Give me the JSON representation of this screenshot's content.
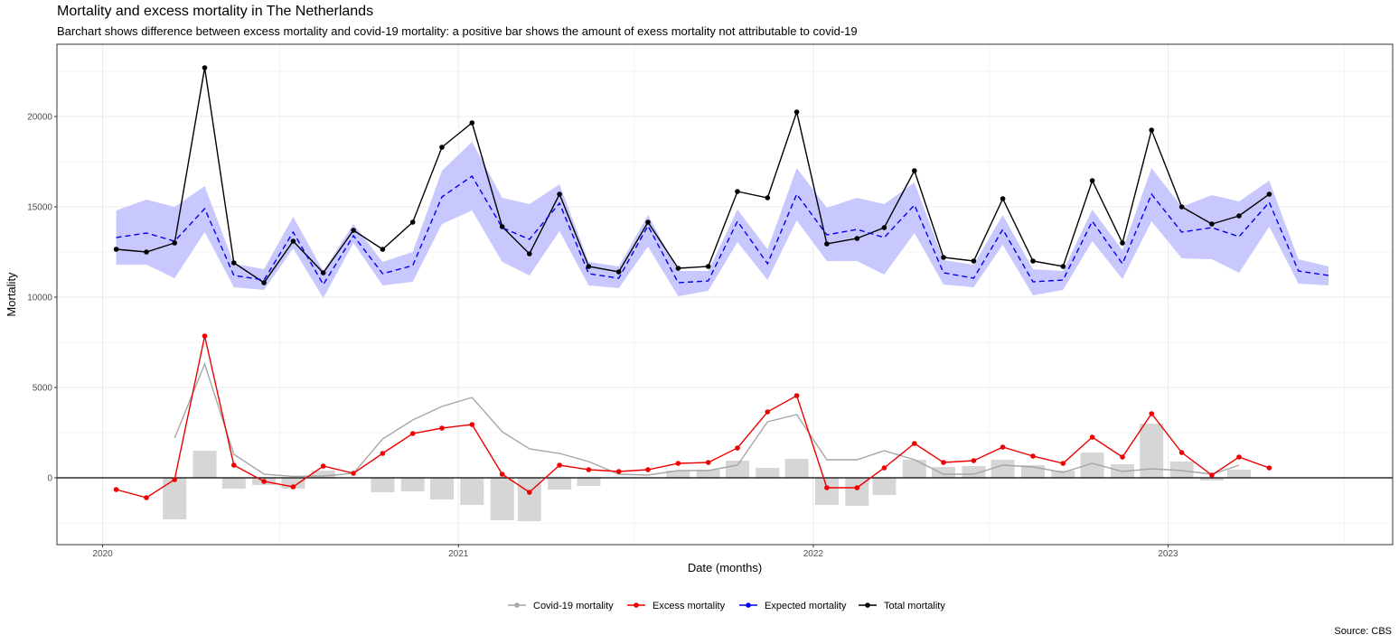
{
  "chart_data": {
    "type": "line",
    "title": "Mortality and excess mortality in The Netherlands",
    "subtitle": "Barchart shows difference between excess mortality and covid-19 mortality: a positive bar shows the amount of exess mortality not attributable to covid-19",
    "xlabel": "Date (months)",
    "ylabel": "Mortality",
    "caption": "Source: CBS",
    "x_ticks": [
      "2020",
      "2021",
      "2022",
      "2023"
    ],
    "y_ticks": [
      0,
      5000,
      10000,
      15000,
      20000
    ],
    "xlim": [
      "2019-11-15",
      "2023-08-20"
    ],
    "ylim": [
      -3700,
      24000
    ],
    "grid": true,
    "legend_position": "bottom",
    "legend": [
      "Covid-19 mortality",
      "Excess mortality",
      "Expected mortality",
      "Total mortality"
    ],
    "colors": {
      "covid": "#a6a6a6",
      "excess": "#ee0000",
      "expected": "#0000ee",
      "total": "#000000",
      "band": "#c8c8ff",
      "bars": "#d6d6d6"
    },
    "months": [
      "2020-01",
      "2020-02",
      "2020-03",
      "2020-04",
      "2020-05",
      "2020-06",
      "2020-07",
      "2020-08",
      "2020-09",
      "2020-10",
      "2020-11",
      "2020-12",
      "2021-01",
      "2021-02",
      "2021-03",
      "2021-04",
      "2021-05",
      "2021-06",
      "2021-07",
      "2021-08",
      "2021-09",
      "2021-10",
      "2021-11",
      "2021-12",
      "2022-01",
      "2022-02",
      "2022-03",
      "2022-04",
      "2022-05",
      "2022-06",
      "2022-07",
      "2022-08",
      "2022-09",
      "2022-10",
      "2022-11",
      "2022-12",
      "2023-01",
      "2023-02",
      "2023-03",
      "2023-04",
      "2023-05",
      "2023-06"
    ],
    "series": [
      {
        "name": "Total mortality",
        "values": [
          12650,
          12500,
          13000,
          22700,
          11900,
          10800,
          13100,
          11350,
          13700,
          12650,
          14150,
          18300,
          19650,
          13900,
          12400,
          15700,
          11700,
          11400,
          14150,
          11600,
          11700,
          15850,
          15500,
          20250,
          12950,
          13250,
          13850,
          17000,
          12200,
          12000,
          15450,
          12000,
          11700,
          16450,
          13000,
          19250,
          15000,
          14050,
          14500,
          15700,
          null,
          null
        ]
      },
      {
        "name": "Expected mortality",
        "values": [
          13300,
          13550,
          13100,
          14900,
          11200,
          10950,
          13600,
          10700,
          13400,
          11300,
          11750,
          15550,
          16700,
          13850,
          13200,
          15200,
          11300,
          11050,
          13950,
          10800,
          10900,
          14200,
          11850,
          15700,
          13450,
          13750,
          13300,
          15100,
          11350,
          11050,
          13750,
          10850,
          10950,
          14200,
          11850,
          15700,
          13600,
          13850,
          13350,
          15250,
          11450,
          11200
        ]
      },
      {
        "name": "Covid-19 mortality",
        "values": [
          null,
          null,
          2200,
          6300,
          1300,
          200,
          80,
          100,
          250,
          2150,
          3200,
          3950,
          4450,
          2550,
          1600,
          1350,
          900,
          200,
          150,
          400,
          400,
          700,
          3100,
          3500,
          1000,
          1000,
          1500,
          1000,
          200,
          200,
          700,
          600,
          300,
          800,
          350,
          500,
          400,
          200,
          700,
          null,
          null,
          null
        ]
      },
      {
        "name": "Excess mortality",
        "values": [
          -650,
          -1100,
          -100,
          7850,
          700,
          -200,
          -500,
          650,
          250,
          1350,
          2450,
          2750,
          2950,
          200,
          -800,
          700,
          450,
          350,
          450,
          800,
          850,
          1650,
          3650,
          4550,
          -550,
          -550,
          550,
          1900,
          850,
          950,
          1700,
          1200,
          800,
          2250,
          1150,
          3550,
          1400,
          150,
          1150,
          550,
          null,
          null
        ]
      }
    ],
    "expected_band": {
      "lower": [
        11800,
        11800,
        11050,
        13600,
        10550,
        10400,
        12700,
        9950,
        13000,
        10650,
        10850,
        14050,
        14800,
        11950,
        11200,
        13650,
        10650,
        10500,
        12800,
        10050,
        10350,
        13050,
        10950,
        14250,
        12000,
        12000,
        11250,
        13550,
        10700,
        10550,
        12900,
        10100,
        10400,
        13100,
        11000,
        14200,
        12150,
        12100,
        11350,
        13900,
        10750,
        10650
      ],
      "upper": [
        14800,
        15400,
        15000,
        16150,
        11850,
        11550,
        14450,
        11450,
        14050,
        11950,
        12500,
        17000,
        18600,
        15500,
        15150,
        16250,
        11950,
        11700,
        14550,
        11450,
        11450,
        14850,
        12650,
        17150,
        14950,
        15500,
        15150,
        16350,
        12050,
        11800,
        14550,
        11550,
        11450,
        14850,
        12600,
        17150,
        15000,
        15650,
        15300,
        16450,
        12100,
        11700
      ]
    },
    "difference_bars": [
      null,
      null,
      -2300,
      1500,
      -600,
      -400,
      -600,
      400,
      null,
      -800,
      -750,
      -1200,
      -1500,
      -2350,
      -2400,
      -650,
      -450,
      null,
      null,
      400,
      450,
      950,
      550,
      1050,
      -1500,
      -1550,
      -950,
      1000,
      600,
      650,
      1000,
      700,
      400,
      1400,
      750,
      3000,
      900,
      -150,
      450,
      null,
      null,
      null
    ]
  }
}
